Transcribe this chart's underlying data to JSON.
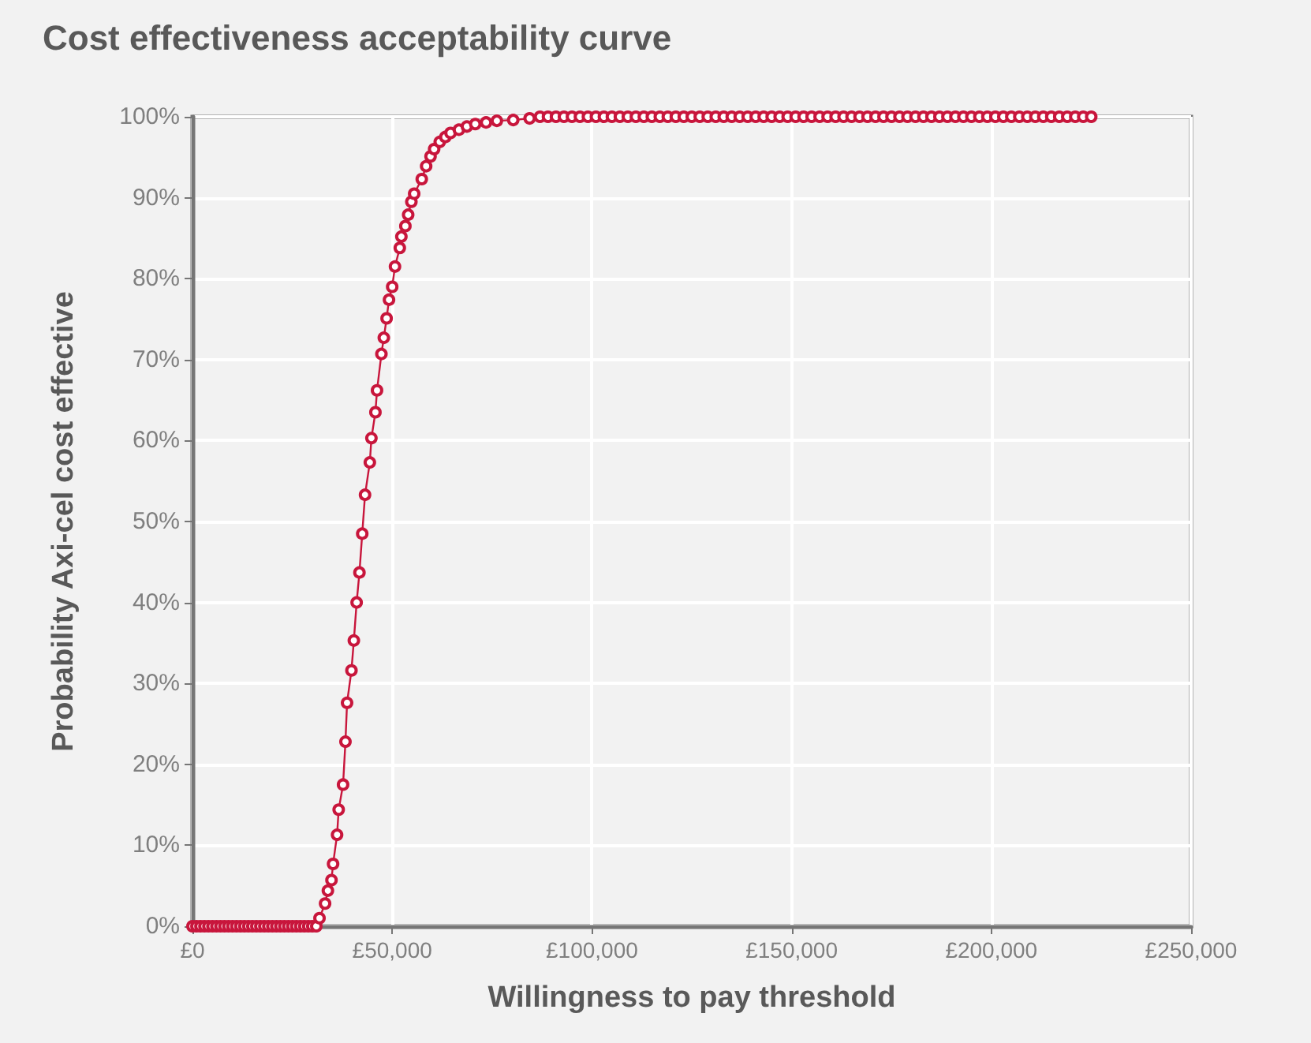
{
  "chart_data": {
    "type": "line",
    "title": "Cost effectiveness acceptability curve",
    "xlabel": "Willingness to pay threshold",
    "ylabel": "Probability Axi-cel cost effective",
    "xlim": [
      0,
      250000
    ],
    "xticks": [
      {
        "value": 0,
        "label": "£0"
      },
      {
        "value": 50000,
        "label": "£50,000"
      },
      {
        "value": 100000,
        "label": "£100,000"
      },
      {
        "value": 150000,
        "label": "£150,000"
      },
      {
        "value": 200000,
        "label": "£200,000"
      },
      {
        "value": 250000,
        "label": "£250,000"
      }
    ],
    "ylim": [
      0,
      100
    ],
    "yticks": [
      {
        "value": 0,
        "label": "0%"
      },
      {
        "value": 10,
        "label": "10%"
      },
      {
        "value": 20,
        "label": "20%"
      },
      {
        "value": 30,
        "label": "30%"
      },
      {
        "value": 40,
        "label": "40%"
      },
      {
        "value": 50,
        "label": "50%"
      },
      {
        "value": 60,
        "label": "60%"
      },
      {
        "value": 70,
        "label": "70%"
      },
      {
        "value": 80,
        "label": "80%"
      },
      {
        "value": 90,
        "label": "90%"
      },
      {
        "value": 100,
        "label": "100%"
      }
    ],
    "grid": true,
    "marker": "circle",
    "line_style": "solid",
    "series": [
      {
        "color": "#c8163c",
        "x": [
          0,
          1000,
          2000,
          3000,
          4000,
          5000,
          6000,
          7000,
          8000,
          9000,
          10000,
          11000,
          12000,
          13000,
          14000,
          15000,
          16000,
          17000,
          18000,
          19000,
          20000,
          21000,
          22000,
          23000,
          24000,
          25000,
          26000,
          27000,
          28000,
          29000,
          30000,
          31000,
          31800,
          33200,
          33900,
          34800,
          35200,
          36200,
          36600,
          37700,
          38300,
          38700,
          39800,
          40400,
          41100,
          41800,
          42500,
          43200,
          44400,
          44800,
          45800,
          46200,
          47300,
          47900,
          48600,
          49200,
          50000,
          50700,
          51900,
          52300,
          53300,
          54000,
          54800,
          55500,
          57400,
          58500,
          59600,
          60500,
          61900,
          63300,
          64600,
          66700,
          68700,
          70800,
          73500,
          76200,
          80300,
          84400,
          87000,
          89000,
          91000,
          93000,
          95000,
          97000,
          99000,
          101000,
          103000,
          105000,
          107000,
          109000,
          111000,
          113000,
          115000,
          117000,
          119000,
          121000,
          123000,
          125000,
          127000,
          129000,
          131000,
          133000,
          135000,
          137000,
          139000,
          141000,
          143000,
          145000,
          147000,
          149000,
          151000,
          153000,
          155000,
          157000,
          159000,
          161000,
          163000,
          165000,
          167000,
          169000,
          171000,
          173000,
          175000,
          177000,
          179000,
          181000,
          183000,
          185000,
          187000,
          189000,
          191000,
          193000,
          195000,
          197000,
          199000,
          201000,
          203000,
          205000,
          207000,
          209000,
          211000,
          213000,
          215000,
          217000,
          219000,
          221000,
          223000,
          225000
        ],
        "values": [
          0,
          0,
          0,
          0,
          0,
          0,
          0,
          0,
          0,
          0,
          0,
          0,
          0,
          0,
          0,
          0,
          0,
          0,
          0,
          0,
          0,
          0,
          0,
          0,
          0,
          0,
          0,
          0,
          0,
          0,
          0,
          0,
          1.0,
          2.8,
          4.4,
          5.7,
          7.7,
          11.3,
          14.4,
          17.5,
          22.8,
          27.6,
          31.6,
          35.3,
          40.0,
          43.7,
          48.5,
          53.3,
          57.3,
          60.3,
          63.5,
          66.2,
          70.7,
          72.7,
          75.1,
          77.4,
          79.0,
          81.5,
          83.8,
          85.2,
          86.5,
          87.9,
          89.5,
          90.5,
          92.3,
          93.9,
          95.1,
          96.0,
          96.9,
          97.5,
          98.0,
          98.4,
          98.8,
          99.1,
          99.3,
          99.5,
          99.6,
          99.8,
          100,
          100,
          100,
          100,
          100,
          100,
          100,
          100,
          100,
          100,
          100,
          100,
          100,
          100,
          100,
          100,
          100,
          100,
          100,
          100,
          100,
          100,
          100,
          100,
          100,
          100,
          100,
          100,
          100,
          100,
          100,
          100,
          100,
          100,
          100,
          100,
          100,
          100,
          100,
          100,
          100,
          100,
          100,
          100,
          100,
          100,
          100,
          100,
          100,
          100,
          100,
          100,
          100,
          100,
          100,
          100,
          100,
          100,
          100,
          100,
          100,
          100,
          100,
          100,
          100,
          100,
          100,
          100,
          100,
          100
        ]
      }
    ]
  }
}
